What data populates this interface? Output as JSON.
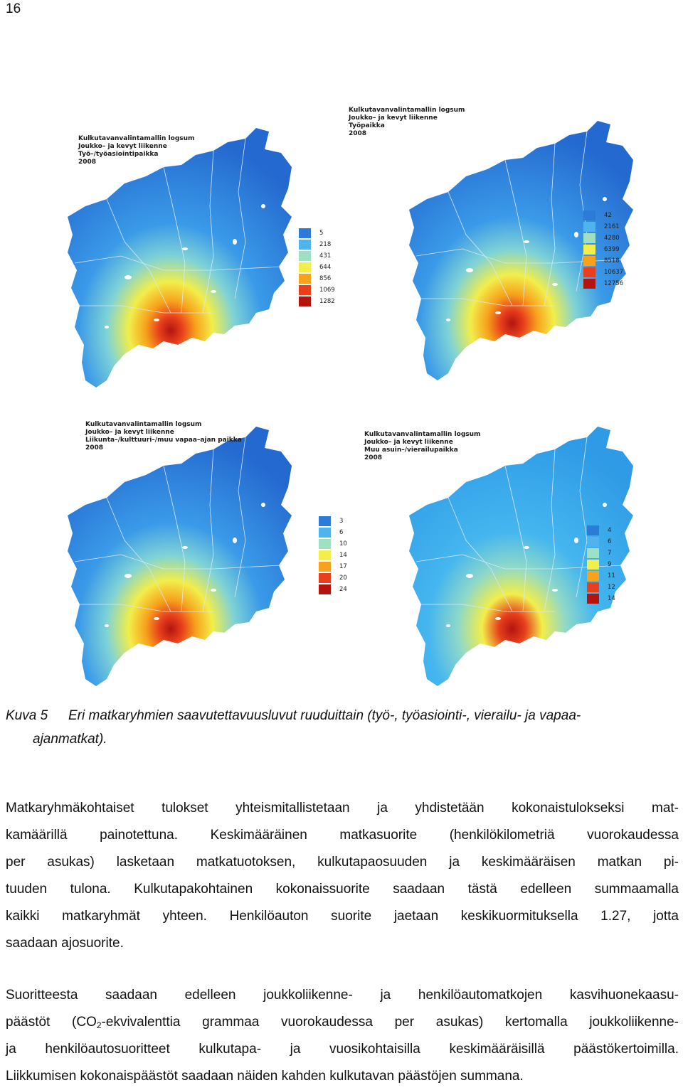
{
  "page": {
    "number": "16"
  },
  "figure": {
    "panels": [
      {
        "title_lines": [
          "Kulkutavanvalintamallin logsum",
          "Joukko– ja kevyt liikenne",
          "Työ–/työasiointipaikka",
          "2008"
        ],
        "legend": [
          "5",
          "218",
          "431",
          "644",
          "856",
          "1069",
          "1282"
        ]
      },
      {
        "title_lines": [
          "Kulkutavanvalintamallin logsum",
          "Joukko– ja kevyt liikenne",
          "Työpaikka",
          "2008"
        ],
        "legend": [
          "42",
          "2161",
          "4280",
          "6399",
          "8518",
          "10637",
          "12756"
        ]
      },
      {
        "title_lines": [
          "Kulkutavanvalintamallin logsum",
          "Joukko– ja kevyt liikenne",
          "Liikunta–/kulttuuri–/muu vapaa–ajan paikka",
          "2008"
        ],
        "legend": [
          "3",
          "6",
          "10",
          "14",
          "17",
          "20",
          "24"
        ]
      },
      {
        "title_lines": [
          "Kulkutavanvalintamallin logsum",
          "Joukko– ja kevyt liikenne",
          "Muu asuin–/vierailupaikka",
          "2008"
        ],
        "legend": [
          "4",
          "6",
          "7",
          "9",
          "11",
          "12",
          "14"
        ]
      }
    ],
    "legend_colors": [
      "#2c7bd6",
      "#4fb4ee",
      "#9fe0c2",
      "#f2ee4a",
      "#f7a21c",
      "#e8401c",
      "#b3140e"
    ],
    "caption": {
      "label": "Kuva 5",
      "line1": "Eri matkaryhmien saavutettavuusluvut ruuduittain (työ-, työasiointi-, vierailu- ja vapaa-",
      "line2": "ajanmatkat)."
    }
  },
  "paragraph1": {
    "lines": [
      "Matkaryhmäkohtaiset tulokset yhteismitallistetaan ja yhdistetään kokonaistulokseksi mat-",
      "kamäärillä painotettuna. Keskimääräinen matkasuorite (henkilökilometriä vuorokaudessa",
      "per asukas) lasketaan matkatuotoksen, kulkutapaosuuden ja keskimääräisen matkan pi-",
      "tuuden tulona. Kulkutapakohtainen kokonaissuorite saadaan tästä edelleen summaamalla",
      "kaikki matkaryhmät yhteen. Henkilöauton suorite jaetaan keskikuormituksella 1.27, jotta",
      "saadaan ajosuorite."
    ]
  },
  "paragraph2": {
    "line1": "Suoritteesta saadaan edelleen joukkoliikenne- ja henkilöautomatkojen kasvihuonekaasu-",
    "line2_pre": "päästöt (CO",
    "line2_sub": "2",
    "line2_post": "-ekvivalenttia grammaa vuorokaudessa per asukas) kertomalla joukkoliikenne-",
    "line3": "ja henkilöautosuoritteet kulkutapa- ja vuosikohtaisilla keskimääräisillä päästökertoimilla.",
    "line4": "Liikkumisen kokonaispäästöt saadaan näiden kahden kulkutavan päästöjen summana."
  }
}
